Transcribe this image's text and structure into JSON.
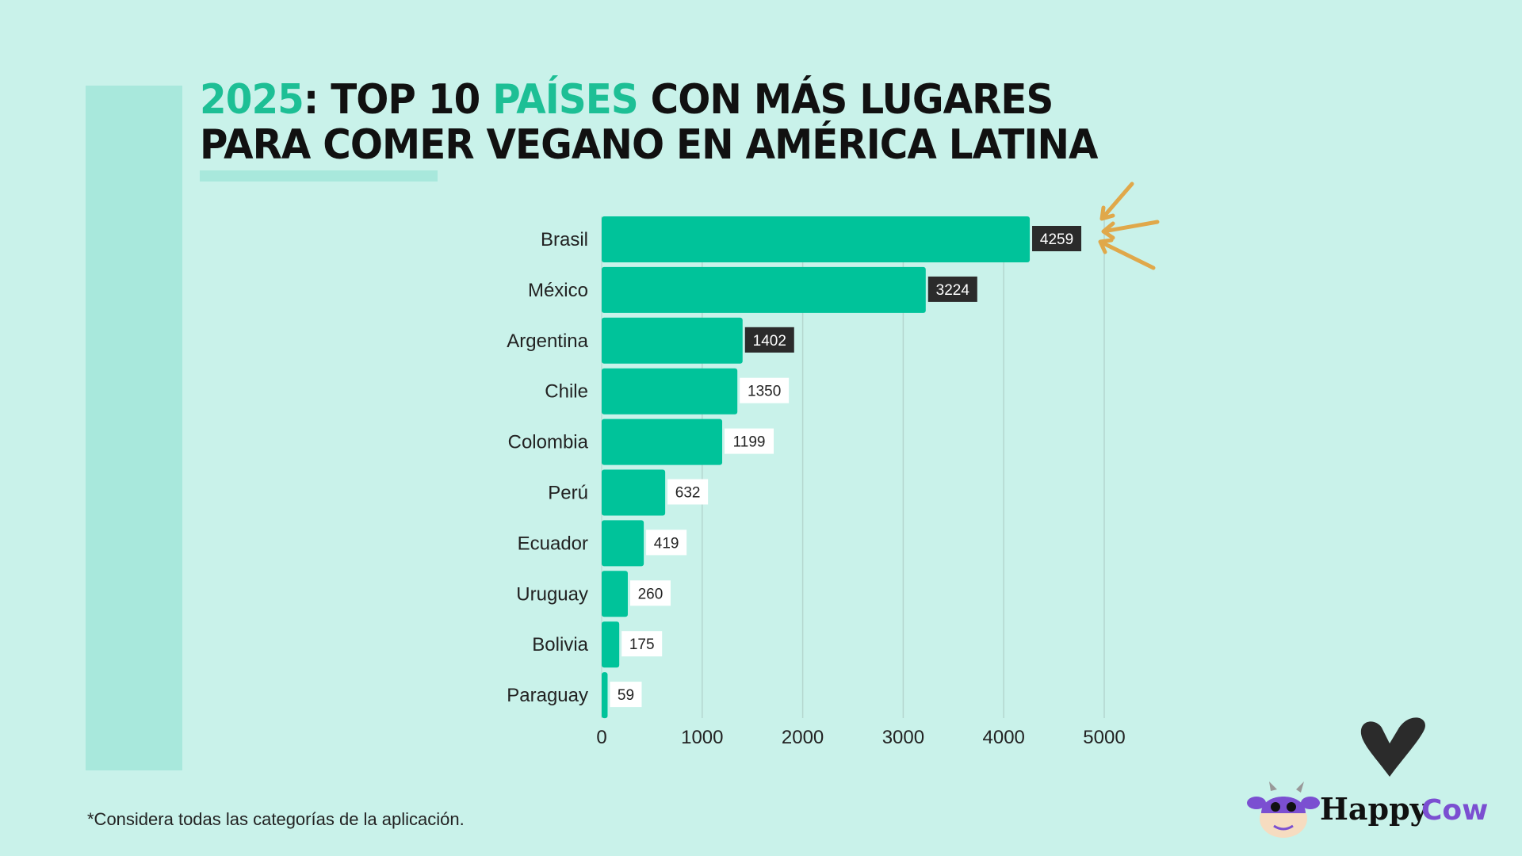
{
  "title": {
    "part1_accent": "2025",
    "part2": ": TOP 10 ",
    "part3_accent": "PAÍSES",
    "part4": " CON MÁS LUGARES",
    "line2": "PARA COMER VEGANO EN AMÉRICA LATINA"
  },
  "footnote": "*Considera todas las categorías de la aplicación.",
  "logo": {
    "text1": "Happy",
    "text2": "Cow"
  },
  "colors": {
    "background": "#c9f2ea",
    "bar": "#00c39a",
    "accent": "#1dbf95",
    "highlight_label": "#2b2b2b",
    "arrows": "#e0a84a",
    "logo_purple": "#7b4fd1"
  },
  "chart_data": {
    "type": "bar",
    "orientation": "horizontal",
    "categories": [
      "Brasil",
      "México",
      "Argentina",
      "Chile",
      "Colombia",
      "Perú",
      "Ecuador",
      "Uruguay",
      "Bolivia",
      "Paraguay"
    ],
    "values": [
      4259,
      3224,
      1402,
      1350,
      1199,
      632,
      419,
      260,
      175,
      59
    ],
    "highlighted": [
      true,
      true,
      true,
      false,
      false,
      false,
      false,
      false,
      false,
      false
    ],
    "xlim": [
      0,
      5000
    ],
    "xticks": [
      "0",
      "1000",
      "2000",
      "3000",
      "4000",
      "5000"
    ],
    "grid": true,
    "xlabel": "",
    "ylabel": ""
  }
}
